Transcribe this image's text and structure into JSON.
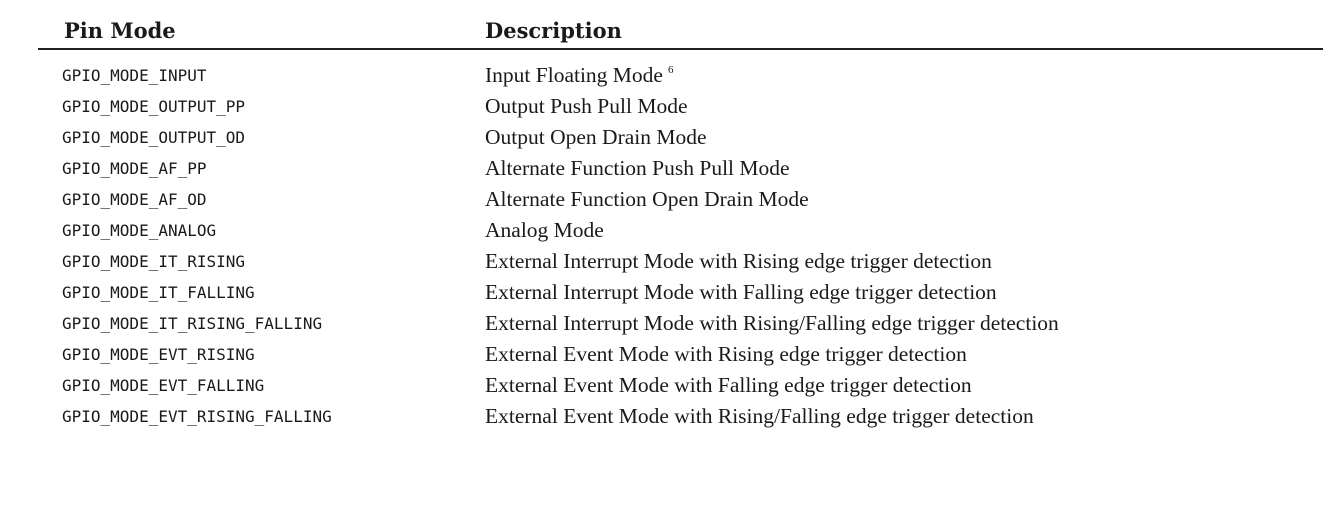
{
  "table": {
    "headers": {
      "pin_mode": "Pin Mode",
      "description": "Description"
    },
    "rows": [
      {
        "mode": "GPIO_MODE_INPUT",
        "description": "Input Floating Mode",
        "footnote": "6"
      },
      {
        "mode": "GPIO_MODE_OUTPUT_PP",
        "description": "Output Push Pull Mode"
      },
      {
        "mode": "GPIO_MODE_OUTPUT_OD",
        "description": "Output Open Drain Mode"
      },
      {
        "mode": "GPIO_MODE_AF_PP",
        "description": "Alternate Function Push Pull Mode"
      },
      {
        "mode": "GPIO_MODE_AF_OD",
        "description": "Alternate Function Open Drain Mode"
      },
      {
        "mode": "GPIO_MODE_ANALOG",
        "description": "Analog Mode"
      },
      {
        "mode": "GPIO_MODE_IT_RISING",
        "description": "External Interrupt Mode with Rising edge trigger detection"
      },
      {
        "mode": "GPIO_MODE_IT_FALLING",
        "description": "External Interrupt Mode with Falling edge trigger detection"
      },
      {
        "mode": "GPIO_MODE_IT_RISING_FALLING",
        "description": "External Interrupt Mode with Rising/Falling edge trigger detection"
      },
      {
        "mode": "GPIO_MODE_EVT_RISING",
        "description": "External Event Mode with Rising edge trigger detection"
      },
      {
        "mode": "GPIO_MODE_EVT_FALLING",
        "description": "External Event Mode with Falling edge trigger detection"
      },
      {
        "mode": "GPIO_MODE_EVT_RISING_FALLING",
        "description": "External Event Mode with Rising/Falling edge trigger detection"
      }
    ]
  }
}
